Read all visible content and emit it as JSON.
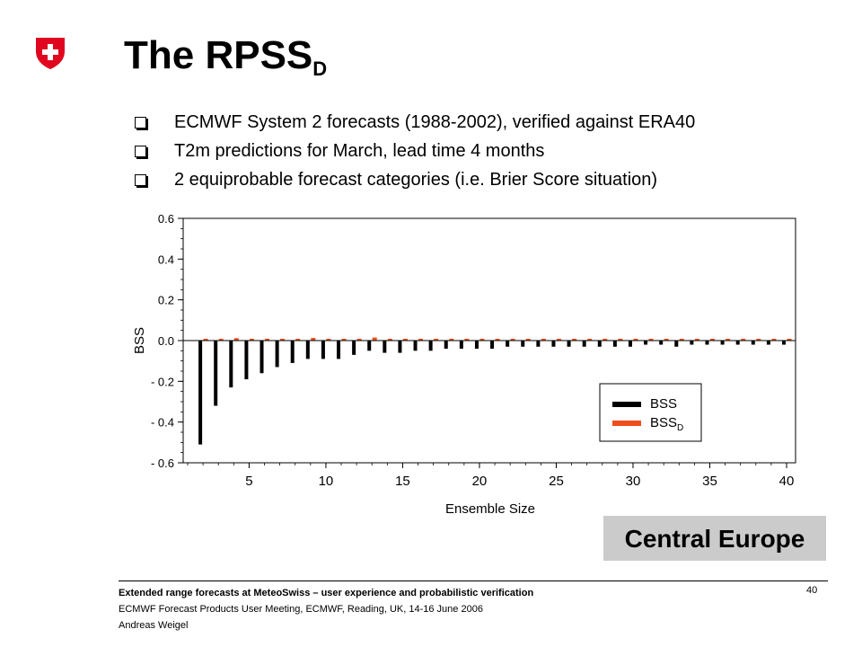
{
  "slide": {
    "title": "The RPSS",
    "title_subscript": "D",
    "bullets": [
      "ECMWF System 2 forecasts (1988-2002), verified against ERA40",
      "T2m predictions for March, lead time 4 months",
      "2 equiprobable forecast categories (i.e. Brier Score situation)"
    ],
    "region": "Central Europe",
    "footer": {
      "heading": "Extended range forecasts at MeteoSwiss – user experience and probabilistic verification",
      "meeting": "ECMWF Forecast Products User Meeting, ECMWF, Reading, UK, 14-16 June 2006",
      "author": "Andreas Weigel",
      "page_number": "40"
    }
  },
  "colors": {
    "logo_red": "#e0061f",
    "bss": "#000000",
    "bssd": "#f04f1d",
    "badge": "#cbcbcb"
  },
  "chart_data": {
    "type": "bar",
    "xlabel": "Ensemble Size",
    "ylabel": "BSS",
    "xlim": [
      1,
      40
    ],
    "ylim": [
      -0.6,
      0.6
    ],
    "xticks": [
      5,
      10,
      15,
      20,
      25,
      30,
      35,
      40
    ],
    "xtick_labels": [
      "5",
      "10",
      "15",
      "20",
      "25",
      "30",
      "35",
      "40"
    ],
    "yticks": [
      0.6,
      0.4,
      0.2,
      0.0,
      -0.2,
      -0.4,
      -0.6
    ],
    "ytick_labels": [
      "0.6",
      "0.4",
      "0.2",
      "0.0",
      "- 0.2",
      "- 0.4",
      "- 0.6"
    ],
    "grid": false,
    "legend_position": "bottom-right",
    "x": [
      2,
      3,
      4,
      5,
      6,
      7,
      8,
      9,
      10,
      11,
      12,
      13,
      14,
      15,
      16,
      17,
      18,
      19,
      20,
      21,
      22,
      23,
      24,
      25,
      26,
      27,
      28,
      29,
      30,
      31,
      32,
      33,
      34,
      35,
      36,
      37,
      38,
      39,
      40
    ],
    "series": [
      {
        "name": "BSS",
        "color": "#000000",
        "values": [
          -0.51,
          -0.32,
          -0.23,
          -0.19,
          -0.16,
          -0.13,
          -0.11,
          -0.09,
          -0.09,
          -0.09,
          -0.07,
          -0.05,
          -0.06,
          -0.06,
          -0.05,
          -0.05,
          -0.04,
          -0.04,
          -0.04,
          -0.04,
          -0.03,
          -0.03,
          -0.03,
          -0.03,
          -0.03,
          -0.03,
          -0.03,
          -0.03,
          -0.03,
          -0.02,
          -0.02,
          -0.03,
          -0.02,
          -0.02,
          -0.02,
          -0.02,
          -0.02,
          -0.02,
          -0.02
        ]
      },
      {
        "name": "BSS",
        "name_subscript": "D",
        "color": "#f04f1d",
        "values": [
          0.0,
          0.008,
          0.012,
          0.006,
          0.006,
          0.006,
          0.006,
          0.013,
          0.007,
          0.007,
          0.007,
          0.015,
          0.007,
          0.007,
          0.007,
          0.007,
          0.007,
          0.007,
          0.007,
          0.007,
          0.007,
          0.007,
          0.007,
          0.007,
          0.007,
          0.007,
          0.007,
          0.007,
          0.007,
          0.007,
          0.007,
          0.007,
          0.007,
          0.007,
          0.007,
          0.007,
          0.007,
          0.007,
          0.007
        ]
      }
    ]
  }
}
